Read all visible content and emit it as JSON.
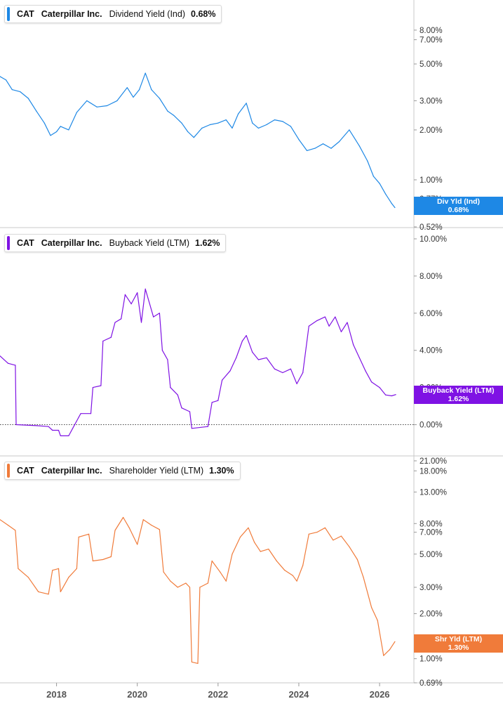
{
  "chart_data": [
    {
      "type": "line",
      "legend": {
        "ticker": "CAT",
        "company": "Caterpillar Inc.",
        "metric": "Dividend Yield (Ind)",
        "value": "0.68%"
      },
      "flag": {
        "line1": "Div Yld (Ind)",
        "line2": "0.68%"
      },
      "color": "#1e88e5",
      "scale": "log",
      "ylim": [
        0.52,
        10.5
      ],
      "y_ticks": [
        {
          "value": 8,
          "label": "8.00%"
        },
        {
          "value": 7,
          "label": "7.00%"
        },
        {
          "value": 5,
          "label": "5.00%"
        },
        {
          "value": 3,
          "label": "3.00%"
        },
        {
          "value": 2,
          "label": "2.00%"
        },
        {
          "value": 1,
          "label": "1.00%"
        },
        {
          "value": 0.77,
          "label": "0.77%"
        },
        {
          "value": 0.52,
          "label": "0.52%"
        }
      ],
      "points": [
        [
          2016.6,
          4.2
        ],
        [
          2016.75,
          4.0
        ],
        [
          2016.9,
          3.5
        ],
        [
          2017.1,
          3.4
        ],
        [
          2017.3,
          3.1
        ],
        [
          2017.5,
          2.6
        ],
        [
          2017.7,
          2.2
        ],
        [
          2017.85,
          1.85
        ],
        [
          2018.0,
          1.95
        ],
        [
          2018.1,
          2.1
        ],
        [
          2018.3,
          2.0
        ],
        [
          2018.5,
          2.55
        ],
        [
          2018.75,
          3.0
        ],
        [
          2019.0,
          2.75
        ],
        [
          2019.25,
          2.8
        ],
        [
          2019.5,
          3.0
        ],
        [
          2019.75,
          3.6
        ],
        [
          2019.9,
          3.15
        ],
        [
          2020.05,
          3.5
        ],
        [
          2020.2,
          4.4
        ],
        [
          2020.35,
          3.5
        ],
        [
          2020.55,
          3.1
        ],
        [
          2020.75,
          2.6
        ],
        [
          2020.9,
          2.45
        ],
        [
          2021.1,
          2.2
        ],
        [
          2021.25,
          1.95
        ],
        [
          2021.4,
          1.8
        ],
        [
          2021.6,
          2.05
        ],
        [
          2021.8,
          2.15
        ],
        [
          2022.0,
          2.2
        ],
        [
          2022.2,
          2.3
        ],
        [
          2022.35,
          2.05
        ],
        [
          2022.5,
          2.5
        ],
        [
          2022.7,
          2.9
        ],
        [
          2022.85,
          2.2
        ],
        [
          2023.0,
          2.05
        ],
        [
          2023.2,
          2.15
        ],
        [
          2023.4,
          2.3
        ],
        [
          2023.6,
          2.25
        ],
        [
          2023.8,
          2.1
        ],
        [
          2024.0,
          1.75
        ],
        [
          2024.2,
          1.5
        ],
        [
          2024.4,
          1.55
        ],
        [
          2024.6,
          1.65
        ],
        [
          2024.8,
          1.55
        ],
        [
          2025.0,
          1.7
        ],
        [
          2025.25,
          2.0
        ],
        [
          2025.5,
          1.6
        ],
        [
          2025.7,
          1.3
        ],
        [
          2025.85,
          1.05
        ],
        [
          2026.0,
          0.95
        ],
        [
          2026.15,
          0.82
        ],
        [
          2026.3,
          0.72
        ],
        [
          2026.38,
          0.68
        ]
      ]
    },
    {
      "type": "line",
      "legend": {
        "ticker": "CAT",
        "company": "Caterpillar Inc.",
        "metric": "Buyback Yield (LTM)",
        "value": "1.62%"
      },
      "flag": {
        "line1": "Buyback Yield (LTM)",
        "line2": "1.62%"
      },
      "color": "#7f12e4",
      "scale": "linear",
      "ylim": [
        -1.0,
        10.0
      ],
      "zero_line": true,
      "y_ticks": [
        {
          "value": 10,
          "label": "10.00%"
        },
        {
          "value": 8,
          "label": "8.00%"
        },
        {
          "value": 6,
          "label": "6.00%"
        },
        {
          "value": 4,
          "label": "4.00%"
        },
        {
          "value": 2,
          "label": "2.00%"
        },
        {
          "value": 0,
          "label": "0.00%"
        }
      ],
      "points": [
        [
          2016.6,
          3.7
        ],
        [
          2016.8,
          3.3
        ],
        [
          2016.98,
          3.2
        ],
        [
          2017.0,
          0.0
        ],
        [
          2017.5,
          -0.05
        ],
        [
          2017.8,
          -0.1
        ],
        [
          2017.9,
          -0.3
        ],
        [
          2018.05,
          -0.3
        ],
        [
          2018.1,
          -0.6
        ],
        [
          2018.3,
          -0.6
        ],
        [
          2018.4,
          -0.2
        ],
        [
          2018.55,
          0.4
        ],
        [
          2018.6,
          0.6
        ],
        [
          2018.85,
          0.6
        ],
        [
          2018.9,
          2.0
        ],
        [
          2019.1,
          2.1
        ],
        [
          2019.15,
          4.5
        ],
        [
          2019.35,
          4.7
        ],
        [
          2019.45,
          5.5
        ],
        [
          2019.6,
          5.7
        ],
        [
          2019.7,
          7.0
        ],
        [
          2019.85,
          6.5
        ],
        [
          2020.0,
          7.1
        ],
        [
          2020.1,
          5.5
        ],
        [
          2020.2,
          7.3
        ],
        [
          2020.4,
          5.8
        ],
        [
          2020.55,
          6.0
        ],
        [
          2020.62,
          4.0
        ],
        [
          2020.75,
          3.5
        ],
        [
          2020.82,
          2.0
        ],
        [
          2021.0,
          1.6
        ],
        [
          2021.1,
          0.9
        ],
        [
          2021.3,
          0.7
        ],
        [
          2021.35,
          -0.2
        ],
        [
          2021.75,
          -0.1
        ],
        [
          2021.85,
          1.2
        ],
        [
          2022.0,
          1.3
        ],
        [
          2022.1,
          2.4
        ],
        [
          2022.3,
          2.9
        ],
        [
          2022.45,
          3.6
        ],
        [
          2022.6,
          4.5
        ],
        [
          2022.7,
          4.8
        ],
        [
          2022.85,
          3.9
        ],
        [
          2023.0,
          3.5
        ],
        [
          2023.2,
          3.6
        ],
        [
          2023.4,
          3.0
        ],
        [
          2023.6,
          2.8
        ],
        [
          2023.8,
          3.0
        ],
        [
          2023.95,
          2.2
        ],
        [
          2024.1,
          2.8
        ],
        [
          2024.25,
          5.3
        ],
        [
          2024.45,
          5.6
        ],
        [
          2024.65,
          5.8
        ],
        [
          2024.75,
          5.3
        ],
        [
          2024.9,
          5.8
        ],
        [
          2025.05,
          5.0
        ],
        [
          2025.2,
          5.5
        ],
        [
          2025.35,
          4.3
        ],
        [
          2025.5,
          3.6
        ],
        [
          2025.65,
          2.9
        ],
        [
          2025.8,
          2.3
        ],
        [
          2026.0,
          2.0
        ],
        [
          2026.15,
          1.6
        ],
        [
          2026.3,
          1.55
        ],
        [
          2026.4,
          1.62
        ]
      ]
    },
    {
      "type": "line",
      "legend": {
        "ticker": "CAT",
        "company": "Caterpillar Inc.",
        "metric": "Shareholder Yield (LTM)",
        "value": "1.30%"
      },
      "flag": {
        "line1": "Shr Yld (LTM)",
        "line2": "1.30%"
      },
      "color": "#f07b3a",
      "scale": "log",
      "ylim": [
        0.69,
        21.0
      ],
      "y_ticks": [
        {
          "value": 21,
          "label": "21.00%"
        },
        {
          "value": 18,
          "label": "18.00%"
        },
        {
          "value": 13,
          "label": "13.00%"
        },
        {
          "value": 8,
          "label": "8.00%"
        },
        {
          "value": 7,
          "label": "7.00%"
        },
        {
          "value": 5,
          "label": "5.00%"
        },
        {
          "value": 3,
          "label": "3.00%"
        },
        {
          "value": 2,
          "label": "2.00%"
        },
        {
          "value": 1,
          "label": "1.00%"
        },
        {
          "value": 0.69,
          "label": "0.69%"
        }
      ],
      "points": [
        [
          2016.6,
          8.5
        ],
        [
          2016.8,
          7.8
        ],
        [
          2016.98,
          7.2
        ],
        [
          2017.05,
          4.0
        ],
        [
          2017.3,
          3.5
        ],
        [
          2017.55,
          2.8
        ],
        [
          2017.8,
          2.7
        ],
        [
          2017.9,
          3.9
        ],
        [
          2018.05,
          4.0
        ],
        [
          2018.1,
          2.8
        ],
        [
          2018.3,
          3.5
        ],
        [
          2018.5,
          4.0
        ],
        [
          2018.55,
          6.5
        ],
        [
          2018.8,
          6.8
        ],
        [
          2018.9,
          4.5
        ],
        [
          2019.15,
          4.6
        ],
        [
          2019.35,
          4.8
        ],
        [
          2019.45,
          7.2
        ],
        [
          2019.65,
          8.8
        ],
        [
          2019.8,
          7.5
        ],
        [
          2020.0,
          5.8
        ],
        [
          2020.15,
          8.5
        ],
        [
          2020.35,
          7.8
        ],
        [
          2020.55,
          7.3
        ],
        [
          2020.65,
          3.8
        ],
        [
          2020.82,
          3.3
        ],
        [
          2021.0,
          3.0
        ],
        [
          2021.2,
          3.2
        ],
        [
          2021.3,
          3.0
        ],
        [
          2021.35,
          0.95
        ],
        [
          2021.5,
          0.93
        ],
        [
          2021.55,
          3.0
        ],
        [
          2021.75,
          3.2
        ],
        [
          2021.85,
          4.5
        ],
        [
          2022.05,
          3.8
        ],
        [
          2022.2,
          3.3
        ],
        [
          2022.35,
          5.0
        ],
        [
          2022.55,
          6.5
        ],
        [
          2022.75,
          7.5
        ],
        [
          2022.9,
          6.0
        ],
        [
          2023.05,
          5.2
        ],
        [
          2023.25,
          5.4
        ],
        [
          2023.45,
          4.5
        ],
        [
          2023.65,
          3.9
        ],
        [
          2023.85,
          3.6
        ],
        [
          2023.95,
          3.3
        ],
        [
          2024.1,
          4.2
        ],
        [
          2024.25,
          6.8
        ],
        [
          2024.45,
          7.0
        ],
        [
          2024.65,
          7.5
        ],
        [
          2024.85,
          6.2
        ],
        [
          2025.05,
          6.6
        ],
        [
          2025.25,
          5.6
        ],
        [
          2025.45,
          4.6
        ],
        [
          2025.6,
          3.5
        ],
        [
          2025.8,
          2.2
        ],
        [
          2025.95,
          1.8
        ],
        [
          2026.1,
          1.05
        ],
        [
          2026.25,
          1.15
        ],
        [
          2026.38,
          1.3
        ]
      ]
    }
  ],
  "x_axis": {
    "ticks": [
      {
        "value": 2018,
        "label": "2018"
      },
      {
        "value": 2020,
        "label": "2020"
      },
      {
        "value": 2022,
        "label": "2022"
      },
      {
        "value": 2024,
        "label": "2024"
      },
      {
        "value": 2026,
        "label": "2026"
      }
    ]
  }
}
